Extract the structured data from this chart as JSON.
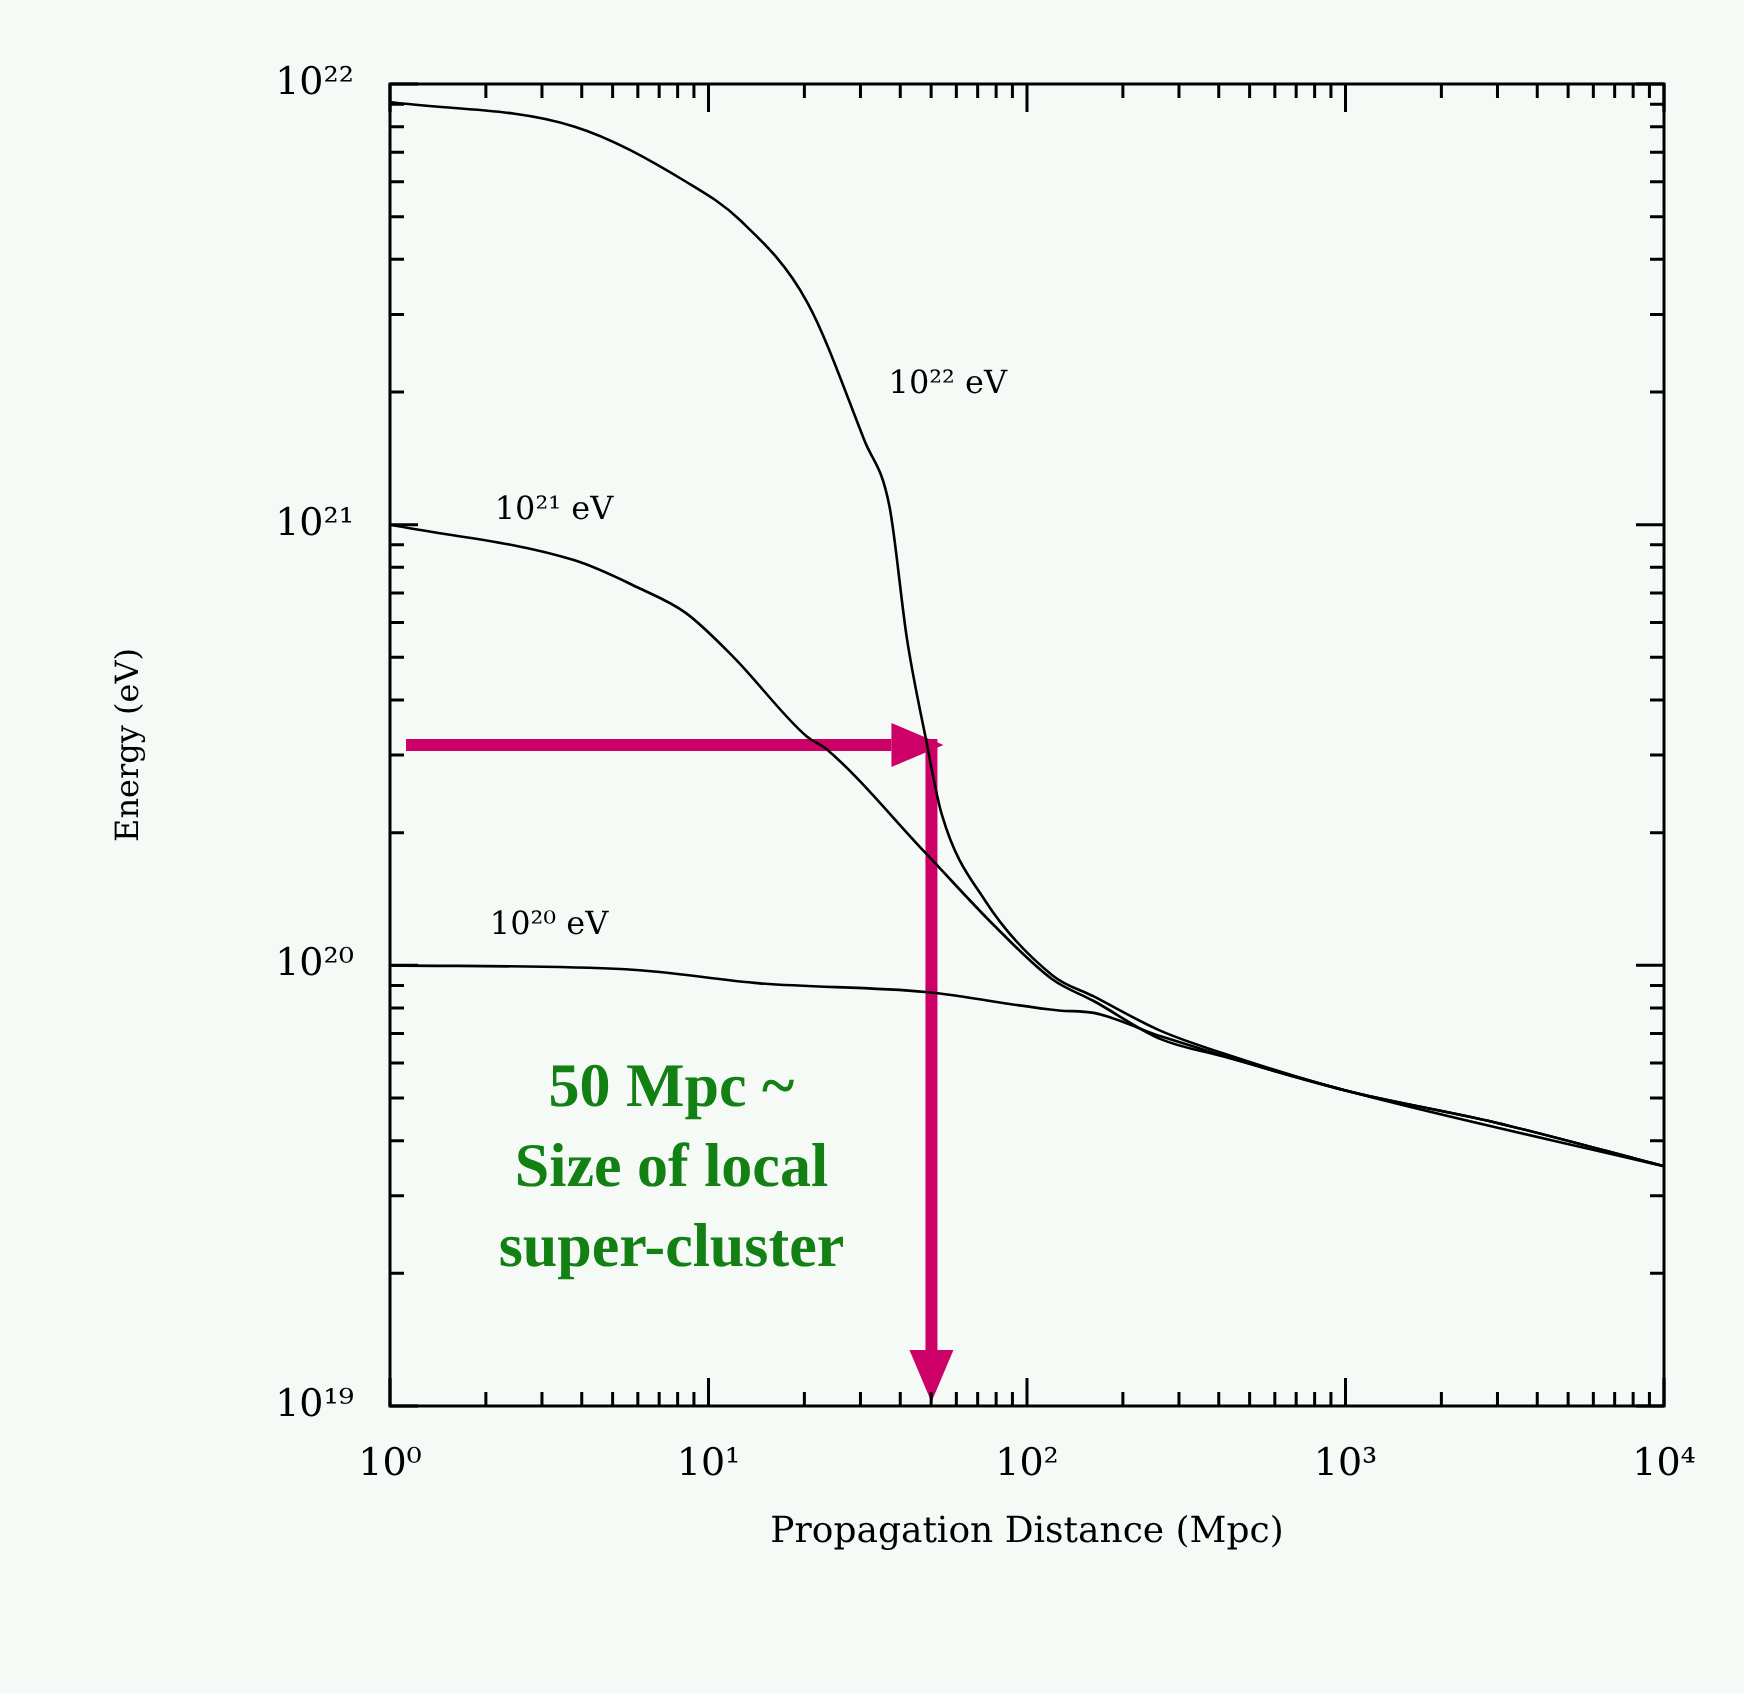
{
  "chart_data": {
    "type": "line",
    "xlabel": "Propagation Distance (Mpc)",
    "ylabel": "Energy (eV)",
    "log": "xy",
    "grid": false,
    "legend": false,
    "marker": "none",
    "line_style": "solid",
    "xlim": [
      1,
      10000
    ],
    "ylim": [
      1e+19,
      1e+22
    ],
    "xticks": [
      {
        "value": 1,
        "label": "10⁰"
      },
      {
        "value": 2,
        "label": null
      },
      {
        "value": 3,
        "label": null
      },
      {
        "value": 4,
        "label": null
      },
      {
        "value": 5,
        "label": null
      },
      {
        "value": 6,
        "label": null
      },
      {
        "value": 7,
        "label": null
      },
      {
        "value": 8,
        "label": null
      },
      {
        "value": 9,
        "label": null
      },
      {
        "value": 10,
        "label": "10¹"
      },
      {
        "value": 20,
        "label": null
      },
      {
        "value": 30,
        "label": null
      },
      {
        "value": 40,
        "label": null
      },
      {
        "value": 50,
        "label": null
      },
      {
        "value": 60,
        "label": null
      },
      {
        "value": 70,
        "label": null
      },
      {
        "value": 80,
        "label": null
      },
      {
        "value": 90,
        "label": null
      },
      {
        "value": 100,
        "label": "10²"
      },
      {
        "value": 200,
        "label": null
      },
      {
        "value": 300,
        "label": null
      },
      {
        "value": 400,
        "label": null
      },
      {
        "value": 500,
        "label": null
      },
      {
        "value": 600,
        "label": null
      },
      {
        "value": 700,
        "label": null
      },
      {
        "value": 800,
        "label": null
      },
      {
        "value": 900,
        "label": null
      },
      {
        "value": 1000,
        "label": "10³"
      },
      {
        "value": 2000,
        "label": null
      },
      {
        "value": 3000,
        "label": null
      },
      {
        "value": 4000,
        "label": null
      },
      {
        "value": 5000,
        "label": null
      },
      {
        "value": 6000,
        "label": null
      },
      {
        "value": 7000,
        "label": null
      },
      {
        "value": 8000,
        "label": null
      },
      {
        "value": 9000,
        "label": null
      },
      {
        "value": 10000,
        "label": "10⁴"
      }
    ],
    "yticks": [
      {
        "value": 1e+19,
        "label": "10¹⁹"
      },
      {
        "value": 2e+19,
        "label": null
      },
      {
        "value": 3e+19,
        "label": null
      },
      {
        "value": 4e+19,
        "label": null
      },
      {
        "value": 5e+19,
        "label": null
      },
      {
        "value": 6e+19,
        "label": null
      },
      {
        "value": 7e+19,
        "label": null
      },
      {
        "value": 8e+19,
        "label": null
      },
      {
        "value": 9e+19,
        "label": null
      },
      {
        "value": 1e+20,
        "label": "10²⁰"
      },
      {
        "value": 2e+20,
        "label": null
      },
      {
        "value": 3e+20,
        "label": null
      },
      {
        "value": 4e+20,
        "label": null
      },
      {
        "value": 5e+20,
        "label": null
      },
      {
        "value": 6e+20,
        "label": null
      },
      {
        "value": 7e+20,
        "label": null
      },
      {
        "value": 8e+20,
        "label": null
      },
      {
        "value": 9e+20,
        "label": null
      },
      {
        "value": 1e+21,
        "label": "10²¹"
      },
      {
        "value": 2e+21,
        "label": null
      },
      {
        "value": 3e+21,
        "label": null
      },
      {
        "value": 4e+21,
        "label": null
      },
      {
        "value": 5e+21,
        "label": null
      },
      {
        "value": 6e+21,
        "label": null
      },
      {
        "value": 7e+21,
        "label": null
      },
      {
        "value": 8e+21,
        "label": null
      },
      {
        "value": 9e+21,
        "label": null
      },
      {
        "value": 1e+22,
        "label": "10²²"
      }
    ],
    "series": [
      {
        "name": "10²² eV",
        "color": "#000000",
        "x": [
          1,
          3.8,
          8.5,
          12.6,
          20.4,
          30.9,
          37,
          42,
          48,
          54,
          74,
          120,
          162,
          263,
          417,
          1000,
          2950,
          10000
        ],
        "values": [
          9.1e+21,
          8e+21,
          6e+21,
          4.9e+21,
          3.2e+21,
          1.55e+21,
          1.1e+21,
          5.5e+20,
          3.3e+20,
          2.2e+20,
          1.4e+20,
          9.5e+19,
          8.5e+19,
          7.1e+19,
          6.3e+19,
          5.2e+19,
          4.4e+19,
          3.5e+19
        ]
      },
      {
        "name": "10²¹ eV",
        "color": "#000000",
        "x": [
          1,
          3.8,
          6.0,
          8.5,
          12,
          20.4,
          23.4,
          48,
          79,
          120,
          162,
          263,
          417,
          1000,
          2950,
          10000
        ],
        "values": [
          1e+21,
          8.3e+20,
          7.2e+20,
          6.3e+20,
          5e+20,
          3.3e+20,
          3.1e+20,
          1.8e+20,
          1.23e+20,
          9.3e+19,
          8.3e+19,
          6.8e+19,
          6.2e+19,
          5.2e+19,
          4.4e+19,
          3.5e+19
        ]
      },
      {
        "name": "10²⁰ eV",
        "color": "#000000",
        "x": [
          1,
          5.5,
          14.5,
          48,
          126,
          162,
          263,
          1000,
          10000
        ],
        "values": [
          1e+20,
          9.8e+19,
          9.1e+19,
          8.7e+19,
          7.9e+19,
          7.8e+19,
          6.9e+19,
          5.2e+19,
          3.5e+19
        ]
      }
    ],
    "annotations": [
      "50 Mpc ~\nSize of local\nsuper-cluster"
    ]
  }
}
